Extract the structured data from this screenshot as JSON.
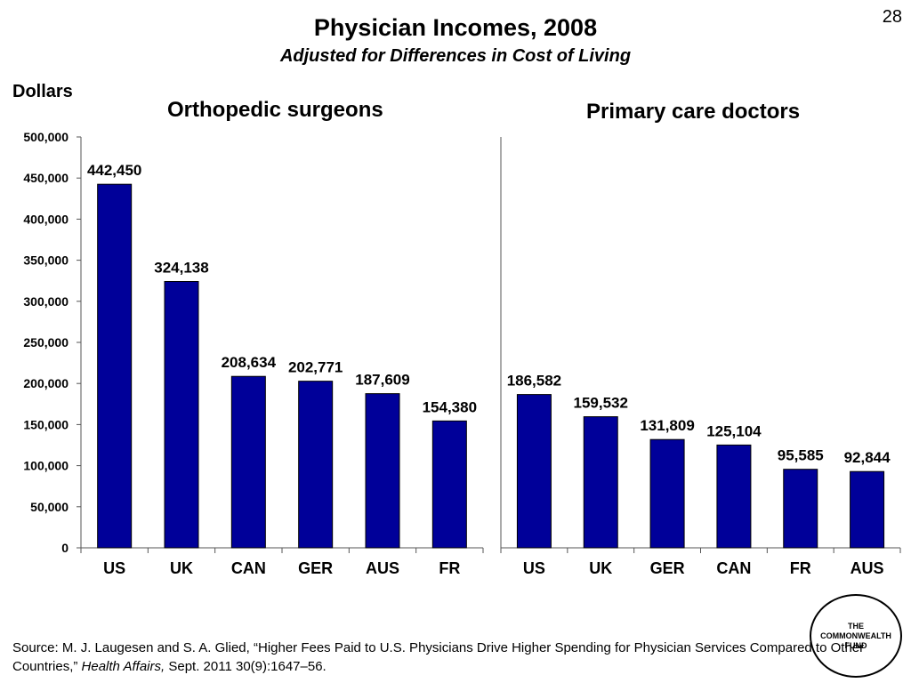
{
  "page_number": "28",
  "title": "Physician Incomes, 2008",
  "subtitle": "Adjusted for Differences in Cost of Living",
  "unit_label": "Dollars",
  "source": {
    "text_before": "Source: M. J. Laugesen and S. A. Glied, “Higher Fees Paid to U.S. Physicians Drive Higher Spending for Physician Services Compared to Other Countries,” ",
    "journal": "Health Affairs,",
    "text_after": " Sept. 2011 30(9):1647–56."
  },
  "logo": {
    "line1": "THE",
    "line2": "COMMONWEALTH",
    "line3": "FUND"
  },
  "chart_data": [
    {
      "type": "bar",
      "title": "Orthopedic surgeons",
      "ylabel": "Dollars",
      "ylim": [
        0,
        500000
      ],
      "yticks": [
        0,
        50000,
        100000,
        150000,
        200000,
        250000,
        300000,
        350000,
        400000,
        450000,
        500000
      ],
      "ytick_labels": [
        "0",
        "50,000",
        "100,000",
        "150,000",
        "200,000",
        "250,000",
        "300,000",
        "350,000",
        "400,000",
        "450,000",
        "500,000"
      ],
      "categories": [
        "US",
        "UK",
        "CAN",
        "GER",
        "AUS",
        "FR"
      ],
      "values": [
        442450,
        324138,
        208634,
        202771,
        187609,
        154380
      ],
      "value_labels": [
        "442,450",
        "324,138",
        "208,634",
        "202,771",
        "187,609",
        "154,380"
      ],
      "bar_color": "#000099",
      "grid": false
    },
    {
      "type": "bar",
      "title": "Primary care doctors",
      "ylim": [
        0,
        500000
      ],
      "categories": [
        "US",
        "UK",
        "GER",
        "CAN",
        "FR",
        "AUS"
      ],
      "values": [
        186582,
        159532,
        131809,
        125104,
        95585,
        92844
      ],
      "value_labels": [
        "186,582",
        "159,532",
        "131,809",
        "125,104",
        "95,585",
        "92,844"
      ],
      "bar_color": "#000099",
      "grid": false
    }
  ]
}
